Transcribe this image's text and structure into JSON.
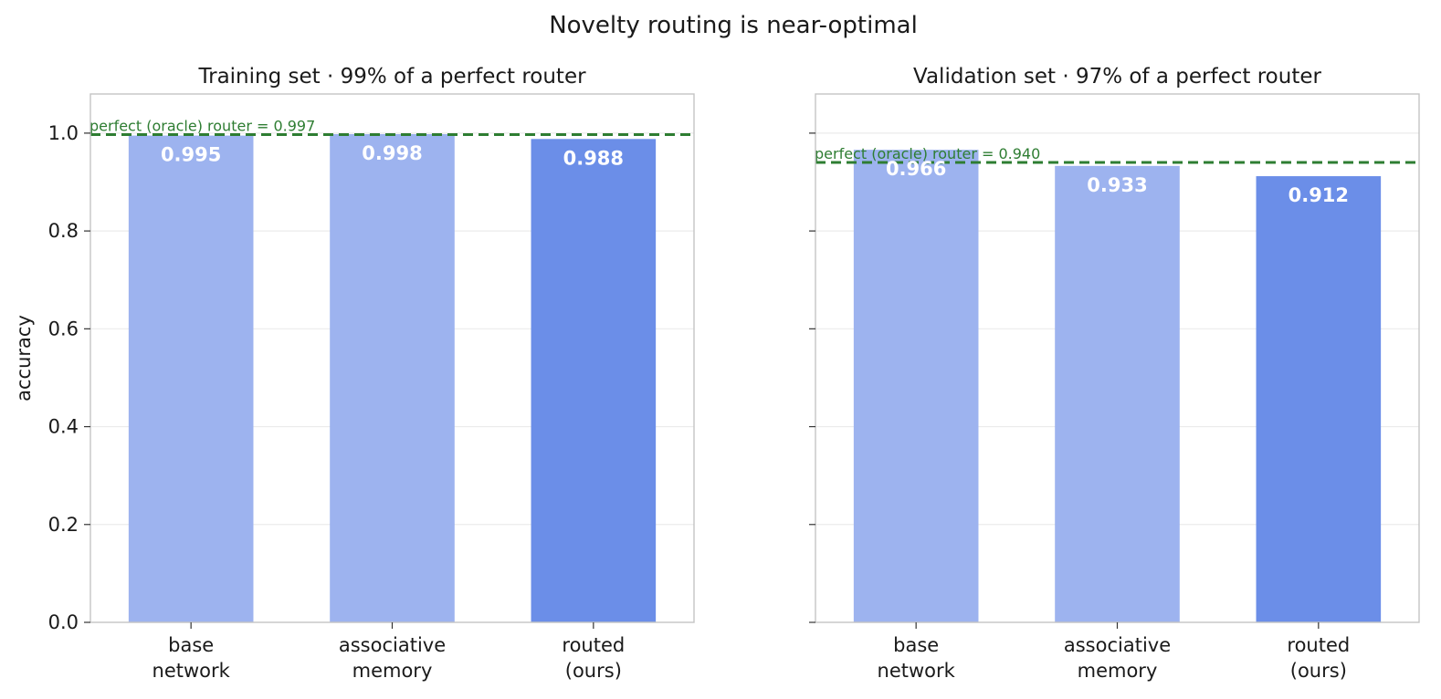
{
  "suptitle": "Novelty routing is near-optimal",
  "colors": {
    "bar_light": "#9db3ef",
    "bar_dark": "#6b8ee8",
    "oracle": "#2e7d32"
  },
  "chart_data": [
    {
      "type": "bar",
      "title": "Training set  ·  99% of a perfect router",
      "categories": [
        "base\nnetwork",
        "associative\nmemory",
        "routed\n(ours)"
      ],
      "values": [
        0.995,
        0.998,
        0.988
      ],
      "value_labels": [
        "0.995",
        "0.998",
        "0.988"
      ],
      "highlight": [
        false,
        false,
        true
      ],
      "oracle": {
        "value": 0.997,
        "label": "perfect (oracle) router = 0.997"
      },
      "ylabel": "accuracy",
      "ylim": [
        0,
        1.08
      ],
      "yticks": [
        0.0,
        0.2,
        0.4,
        0.6,
        0.8,
        1.0
      ],
      "ytick_labels": [
        "0.0",
        "0.2",
        "0.4",
        "0.6",
        "0.8",
        "1.0"
      ],
      "grid": true
    },
    {
      "type": "bar",
      "title": "Validation set  ·  97% of a perfect router",
      "categories": [
        "base\nnetwork",
        "associative\nmemory",
        "routed\n(ours)"
      ],
      "values": [
        0.966,
        0.933,
        0.912
      ],
      "value_labels": [
        "0.966",
        "0.933",
        "0.912"
      ],
      "highlight": [
        false,
        false,
        true
      ],
      "oracle": {
        "value": 0.94,
        "label": "perfect (oracle) router = 0.940"
      },
      "ylabel": "",
      "ylim": [
        0,
        1.08
      ],
      "yticks": [
        0.0,
        0.2,
        0.4,
        0.6,
        0.8,
        1.0
      ],
      "ytick_labels": [],
      "grid": true
    }
  ]
}
